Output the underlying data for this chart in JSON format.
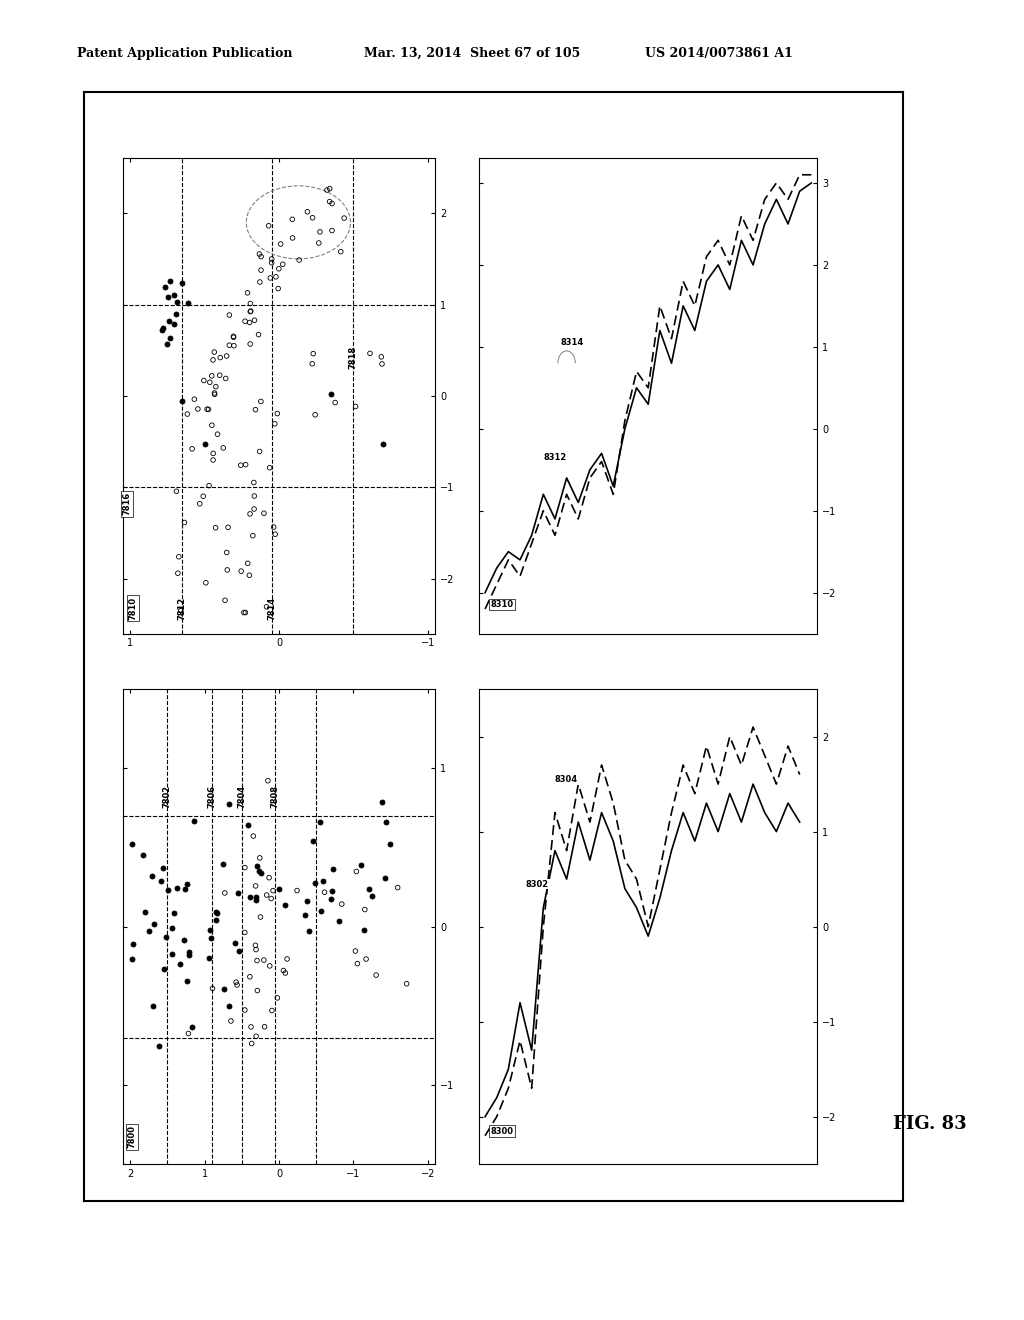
{
  "header_left": "Patent Application Publication",
  "header_mid": "Mar. 13, 2014  Sheet 67 of 105",
  "header_right": "US 2014/0073861 A1",
  "fig_label": "FIG. 83",
  "background_color": "#ffffff"
}
